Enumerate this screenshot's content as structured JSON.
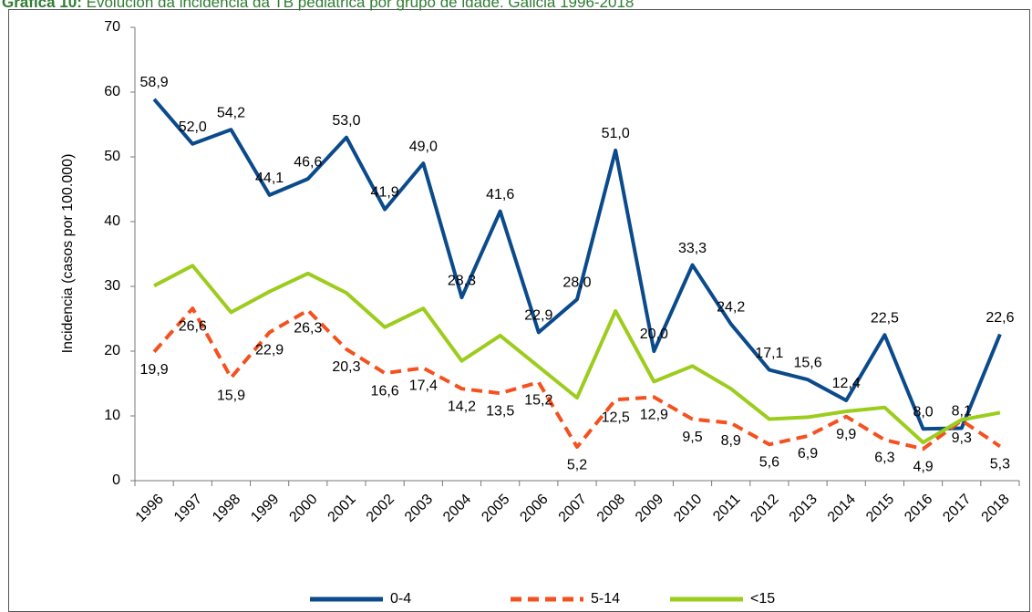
{
  "chart_data": {
    "type": "line",
    "title_prefix": "Gráfica 10:",
    "title": "Evolución da incidencia da TB pediátrica por grupo de idade. Galicia 1996-2018",
    "y_label": "Incidencia (casos por 100.000)",
    "categories": [
      "1996",
      "1997",
      "1998",
      "1999",
      "2000",
      "2001",
      "2002",
      "2003",
      "2004",
      "2005",
      "2006",
      "2007",
      "2008",
      "2009",
      "2010",
      "2011",
      "2012",
      "2013",
      "2014",
      "2015",
      "2016",
      "2017",
      "2018"
    ],
    "ylim": [
      0,
      70
    ],
    "yticks": [
      0,
      10,
      20,
      30,
      40,
      50,
      60,
      70
    ],
    "grid": false,
    "series": [
      {
        "name": "0-4",
        "color": "#0b4a8b",
        "dash": "solid",
        "values": [
          58.9,
          52.0,
          54.2,
          44.1,
          46.6,
          53.0,
          41.9,
          49.0,
          28.3,
          41.6,
          22.9,
          28.0,
          51.0,
          20.0,
          33.3,
          24.2,
          17.1,
          15.6,
          12.4,
          22.5,
          8.0,
          8.1,
          22.6
        ],
        "value_labels": [
          "58,9",
          "52,0",
          "54,2",
          "44,1",
          "46,6",
          "53,0",
          "41,9",
          "49,0",
          "28,3",
          "41,6",
          "22,9",
          "28,0",
          "51,0",
          "20,0",
          "33,3",
          "24,2",
          "17,1",
          "15,6",
          "12,4",
          "22,5",
          "8,0",
          "8,1",
          "22,6"
        ]
      },
      {
        "name": "5-14",
        "color": "#f4511e",
        "dash": "dashed",
        "values": [
          19.9,
          26.6,
          15.9,
          22.9,
          26.3,
          20.3,
          16.6,
          17.4,
          14.2,
          13.5,
          15.2,
          5.2,
          12.5,
          12.9,
          9.5,
          8.9,
          5.6,
          6.9,
          9.9,
          6.3,
          4.9,
          9.3,
          5.3
        ],
        "value_labels": [
          "19,9",
          "26,6",
          "15,9",
          "22,9",
          "26,3",
          "20,3",
          "16,6",
          "17,4",
          "14,2",
          "13,5",
          "15,2",
          "5,2",
          "12,5",
          "12,9",
          "9,5",
          "8,9",
          "5,6",
          "6,9",
          "9,9",
          "6,3",
          "4,9",
          "9,3",
          "5,3"
        ]
      },
      {
        "name": "<15",
        "color": "#9ccc1c",
        "dash": "solid",
        "values": [
          30.1,
          33.2,
          26.0,
          29.2,
          32.0,
          29.0,
          23.7,
          26.6,
          18.5,
          22.4,
          17.6,
          12.8,
          26.2,
          15.3,
          17.7,
          14.2,
          9.5,
          9.8,
          10.7,
          11.3,
          5.9,
          9.4,
          10.5
        ]
      }
    ],
    "legend": "bottom"
  }
}
